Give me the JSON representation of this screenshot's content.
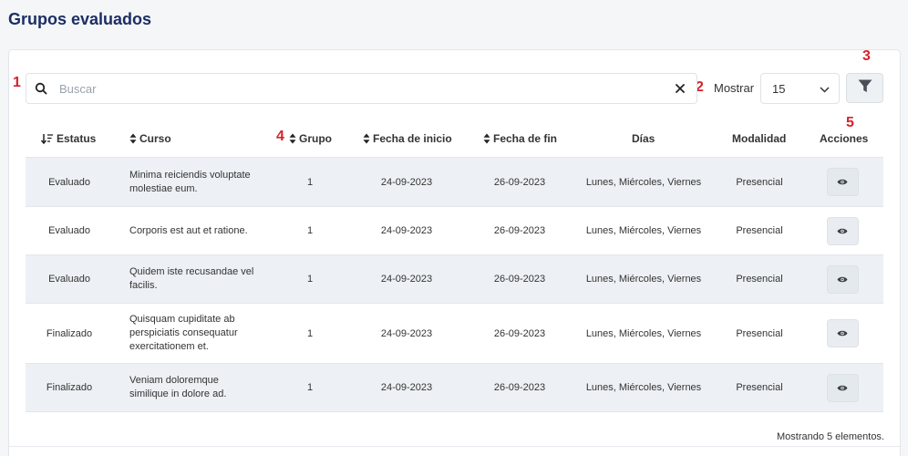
{
  "page": {
    "title": "Grupos evaluados"
  },
  "markers": {
    "m1": "1",
    "m2": "2",
    "m3": "3",
    "m4": "4",
    "m5": "5"
  },
  "search": {
    "placeholder": "Buscar",
    "value": "",
    "clear_icon": "close-icon"
  },
  "pagination": {
    "mostrar_label": "Mostrar",
    "page_size": "15"
  },
  "filter": {
    "icon": "filter-icon"
  },
  "table": {
    "headers": {
      "estatus": "Estatus",
      "curso": "Curso",
      "grupo": "Grupo",
      "fecha_inicio": "Fecha de inicio",
      "fecha_fin": "Fecha de fin",
      "dias": "Días",
      "modalidad": "Modalidad",
      "acciones": "Acciones"
    },
    "rows": [
      {
        "estatus": "Evaluado",
        "curso": "Minima reiciendis voluptate molestiae eum.",
        "grupo": "1",
        "fecha_inicio": "24-09-2023",
        "fecha_fin": "26-09-2023",
        "dias": "Lunes, Miércoles, Viernes",
        "modalidad": "Presencial"
      },
      {
        "estatus": "Evaluado",
        "curso": "Corporis est aut et ratione.",
        "grupo": "1",
        "fecha_inicio": "24-09-2023",
        "fecha_fin": "26-09-2023",
        "dias": "Lunes, Miércoles, Viernes",
        "modalidad": "Presencial"
      },
      {
        "estatus": "Evaluado",
        "curso": "Quidem iste recusandae vel facilis.",
        "grupo": "1",
        "fecha_inicio": "24-09-2023",
        "fecha_fin": "26-09-2023",
        "dias": "Lunes, Miércoles, Viernes",
        "modalidad": "Presencial"
      },
      {
        "estatus": "Finalizado",
        "curso": "Quisquam cupiditate ab perspiciatis consequatur exercitationem et.",
        "grupo": "1",
        "fecha_inicio": "24-09-2023",
        "fecha_fin": "26-09-2023",
        "dias": "Lunes, Miércoles, Viernes",
        "modalidad": "Presencial"
      },
      {
        "estatus": "Finalizado",
        "curso": "Veniam doloremque similique in dolore ad.",
        "grupo": "1",
        "fecha_inicio": "24-09-2023",
        "fecha_fin": "26-09-2023",
        "dias": "Lunes, Miércoles, Viernes",
        "modalidad": "Presencial"
      }
    ]
  },
  "footer": {
    "count_text": "Mostrando 5 elementos."
  },
  "colors": {
    "title": "#1c2e63",
    "marker": "#d6222a",
    "row_shaded": "#edf1f5"
  }
}
